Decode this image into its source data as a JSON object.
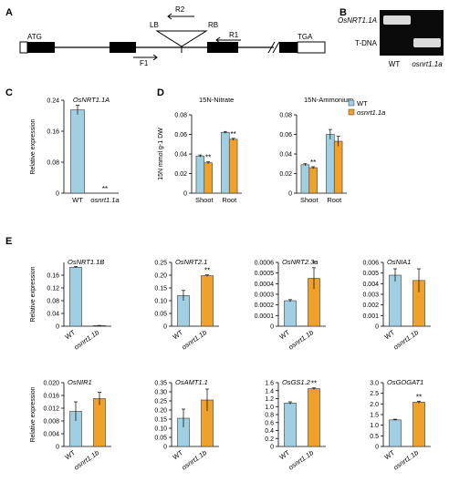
{
  "panel_letters": [
    "A",
    "B",
    "C",
    "D",
    "E"
  ],
  "gene_diagram": {
    "start_codon": "ATG",
    "stop_codon": "TGA",
    "primers": [
      "LB",
      "R2",
      "RB",
      "R1",
      "F1"
    ]
  },
  "gel": {
    "row_labels": [
      "OsNRT1.1A",
      "T-DNA"
    ],
    "lane_labels": [
      "WT",
      "osnrt1.1a"
    ]
  },
  "colors": {
    "wt": "#9fcfe0",
    "mutant": "#f0a12a",
    "edge": "#3a3a3a"
  },
  "chart_data": [
    {
      "id": "C",
      "type": "bar",
      "title": "OsNRT1.1A",
      "ylabel": "Relative expression",
      "ylim": [
        0,
        0.24
      ],
      "yticks": [
        "0",
        "0.08",
        "0.16",
        "0.24"
      ],
      "categories": [
        "WT",
        "osnrt1.1a"
      ],
      "values": [
        0.215,
        0.0
      ],
      "errors": [
        0.012,
        0.0
      ],
      "markers": [
        "",
        "**"
      ]
    },
    {
      "id": "D1",
      "type": "bar",
      "title": "15N-Nitrate",
      "ylabel": "15N mmol g-1 DW",
      "ylim": [
        0,
        0.08
      ],
      "yticks": [
        "0",
        "0.02",
        "0.04",
        "0.06",
        "0.08"
      ],
      "categories": [
        "Shoot",
        "Root"
      ],
      "series": [
        {
          "name": "WT",
          "values": [
            0.038,
            0.062
          ],
          "errors": [
            0.001,
            0.001
          ]
        },
        {
          "name": "osnrt1.1a",
          "values": [
            0.031,
            0.055
          ],
          "errors": [
            0.001,
            0.001
          ]
        }
      ],
      "markers": [
        "**",
        "**"
      ]
    },
    {
      "id": "D2",
      "type": "bar",
      "title": "15N-Ammonium",
      "ylim": [
        0,
        0.08
      ],
      "yticks": [
        "0",
        "0.02",
        "0.04",
        "0.06",
        "0.08"
      ],
      "categories": [
        "Shoot",
        "Root"
      ],
      "series": [
        {
          "name": "WT",
          "values": [
            0.029,
            0.06
          ],
          "errors": [
            0.001,
            0.005
          ]
        },
        {
          "name": "osnrt1.1a",
          "values": [
            0.026,
            0.053
          ],
          "errors": [
            0.001,
            0.005
          ]
        }
      ],
      "markers": [
        "**",
        ""
      ],
      "legend": "top-right"
    },
    {
      "id": "E1",
      "type": "bar",
      "title": "OsNRT1.1B",
      "ylabel": "Relative expression",
      "ylim": [
        0,
        0.2
      ],
      "yticks": [
        "0",
        "0.04",
        "0.08",
        "0.12",
        "0.16"
      ],
      "categories": [
        "WT",
        "osnrt1.1b"
      ],
      "values": [
        0.185,
        0.002
      ],
      "errors": [
        0.002,
        0.0005
      ],
      "markers": [
        "",
        ""
      ]
    },
    {
      "id": "E2",
      "type": "bar",
      "title": "OsNRT2.1",
      "ylim": [
        0,
        0.25
      ],
      "yticks": [
        "0",
        "0.05",
        "0.10",
        "0.15",
        "0.20",
        "0.25"
      ],
      "categories": [
        "WT",
        "osnrt1.1b"
      ],
      "values": [
        0.12,
        0.198
      ],
      "errors": [
        0.02,
        0.003
      ],
      "markers": [
        "",
        "**"
      ]
    },
    {
      "id": "E3",
      "type": "bar",
      "title": "OsNRT2.3a",
      "ylim": [
        0,
        0.0006
      ],
      "yticks": [
        "0",
        "0.0001",
        "0.0002",
        "0.0003",
        "0.0004",
        "0.0005",
        "0.0006"
      ],
      "categories": [
        "WT",
        "osnrt1.1b"
      ],
      "values": [
        0.00024,
        0.00045
      ],
      "errors": [
        1e-05,
        0.0001
      ],
      "markers": [
        "",
        "*"
      ]
    },
    {
      "id": "E4",
      "type": "bar",
      "title": "OsNIA1",
      "ylim": [
        0,
        0.006
      ],
      "yticks": [
        "0",
        "0.001",
        "0.002",
        "0.003",
        "0.004",
        "0.005",
        "0.006"
      ],
      "categories": [
        "WT",
        "osnrt1.1b"
      ],
      "values": [
        0.0048,
        0.0043
      ],
      "errors": [
        0.0006,
        0.0011
      ],
      "markers": [
        "",
        ""
      ]
    },
    {
      "id": "E5",
      "type": "bar",
      "title": "OsNIR1",
      "ylabel": "Relative expression",
      "ylim": [
        0,
        0.02
      ],
      "yticks": [
        "0",
        "0.004",
        "0.008",
        "0.012",
        "0.016",
        "0.020"
      ],
      "categories": [
        "WT",
        "osnrt1.1b"
      ],
      "values": [
        0.011,
        0.015
      ],
      "errors": [
        0.003,
        0.002
      ],
      "markers": [
        "",
        ""
      ]
    },
    {
      "id": "E6",
      "type": "bar",
      "title": "OsAMT1.1",
      "ylim": [
        0,
        0.35
      ],
      "yticks": [
        "0",
        "0.05",
        "0.10",
        "0.15",
        "0.20",
        "0.25",
        "0.30",
        "0.35"
      ],
      "categories": [
        "WT",
        "osnrt1.1b"
      ],
      "values": [
        0.155,
        0.255
      ],
      "errors": [
        0.05,
        0.06
      ],
      "markers": [
        "",
        ""
      ]
    },
    {
      "id": "E7",
      "type": "bar",
      "title": "OsGS1.2",
      "ylim": [
        0,
        1.6
      ],
      "yticks": [
        "0",
        "0.2",
        "0.4",
        "0.6",
        "0.8",
        "1.0",
        "1.2",
        "1.4",
        "1.6"
      ],
      "categories": [
        "WT",
        "osnrt1.1b"
      ],
      "values": [
        1.09,
        1.45
      ],
      "errors": [
        0.03,
        0.02
      ],
      "markers": [
        "",
        "**"
      ]
    },
    {
      "id": "E8",
      "type": "bar",
      "title": "OsGOGAT1",
      "ylim": [
        0,
        3.0
      ],
      "yticks": [
        "0",
        "0.5",
        "1.0",
        "1.5",
        "2.0",
        "2.5",
        "3.0"
      ],
      "categories": [
        "WT",
        "osnrt1.1b"
      ],
      "values": [
        1.25,
        2.08
      ],
      "errors": [
        0.03,
        0.05
      ],
      "markers": [
        "",
        "**"
      ]
    }
  ]
}
